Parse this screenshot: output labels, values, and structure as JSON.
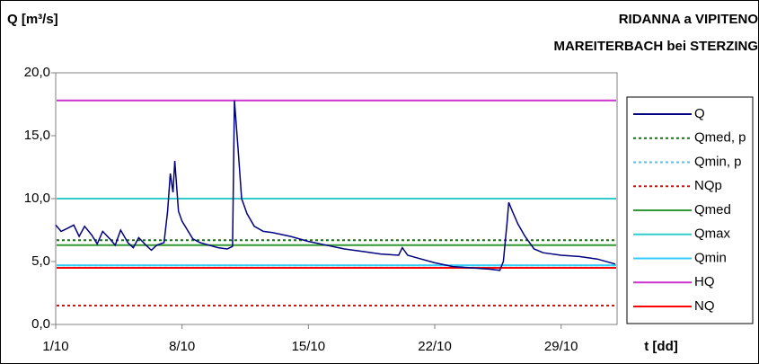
{
  "chart_data": {
    "type": "line",
    "title": "Q [m³/s]",
    "subtitle_lines": [
      "RIDANNA a VIPITENO",
      "MAREITERBACH bei STERZING"
    ],
    "x_label": "t [dd]",
    "xlim": [
      1,
      32.1
    ],
    "xticks": [
      {
        "value": 1,
        "label": "1/10"
      },
      {
        "value": 8,
        "label": "8/10"
      },
      {
        "value": 15,
        "label": "15/10"
      },
      {
        "value": 22,
        "label": "22/10"
      },
      {
        "value": 29,
        "label": "29/10"
      }
    ],
    "ylim": [
      0,
      20
    ],
    "yticks": [
      {
        "value": 0,
        "label": "0,0"
      },
      {
        "value": 5,
        "label": "5,0"
      },
      {
        "value": 10,
        "label": "10,0"
      },
      {
        "value": 15,
        "label": "15,0"
      },
      {
        "value": 20,
        "label": "20,0"
      }
    ],
    "x": [
      1,
      1.3,
      1.6,
      2,
      2.3,
      2.6,
      3,
      3.3,
      3.6,
      4,
      4.3,
      4.6,
      5,
      5.3,
      5.6,
      6,
      6.3,
      6.6,
      7,
      7.2,
      7.35,
      7.5,
      7.6,
      7.8,
      8,
      8.3,
      8.6,
      9,
      9.5,
      10,
      10.5,
      10.8,
      10.9,
      11.1,
      11.3,
      11.6,
      12,
      12.5,
      13,
      14,
      15,
      16,
      17,
      18,
      19,
      20,
      20.2,
      20.5,
      21,
      22,
      23,
      24,
      25,
      25.6,
      25.8,
      26,
      26.1,
      26.3,
      26.6,
      27,
      27.5,
      28,
      29,
      30,
      31,
      32
    ],
    "series": [
      {
        "name": "Q",
        "color": "#000080",
        "style": "solid",
        "values": [
          7.9,
          7.4,
          7.6,
          7.9,
          7.0,
          7.8,
          7.1,
          6.4,
          7.4,
          6.8,
          6.3,
          7.5,
          6.5,
          6.1,
          6.9,
          6.3,
          5.9,
          6.3,
          6.5,
          9,
          12,
          10.5,
          13,
          9,
          8.2,
          7.5,
          6.8,
          6.5,
          6.3,
          6.1,
          6.0,
          6.2,
          17.8,
          14,
          10,
          8.8,
          7.8,
          7.4,
          7.3,
          7.0,
          6.6,
          6.3,
          6.0,
          5.8,
          5.6,
          5.5,
          6.1,
          5.5,
          5.3,
          4.9,
          4.6,
          4.5,
          4.4,
          4.3,
          5.0,
          8.0,
          9.7,
          9.0,
          8.0,
          7.0,
          6.0,
          5.7,
          5.5,
          5.4,
          5.2,
          4.8
        ]
      }
    ],
    "reference_lines": [
      {
        "name": "Qmed, p",
        "color": "#008000",
        "style": "dotted",
        "value": 6.7
      },
      {
        "name": "Qmin, p",
        "color": "#33ccff",
        "style": "dotted",
        "value": 4.7
      },
      {
        "name": "NQp",
        "color": "#ff0000",
        "style": "dotted",
        "value": 1.5
      },
      {
        "name": "Qmed",
        "color": "#339933",
        "style": "solid",
        "value": 6.3
      },
      {
        "name": "Qmax",
        "color": "#33cccc",
        "style": "solid",
        "value": 10
      },
      {
        "name": "Qmin",
        "color": "#33ccff",
        "style": "solid",
        "value": 4.7
      },
      {
        "name": "HQ",
        "color": "#cc33cc",
        "style": "solid",
        "value": 17.8
      },
      {
        "name": "NQ",
        "color": "#ff0000",
        "style": "solid",
        "value": 4.5
      }
    ],
    "legend": "right"
  }
}
